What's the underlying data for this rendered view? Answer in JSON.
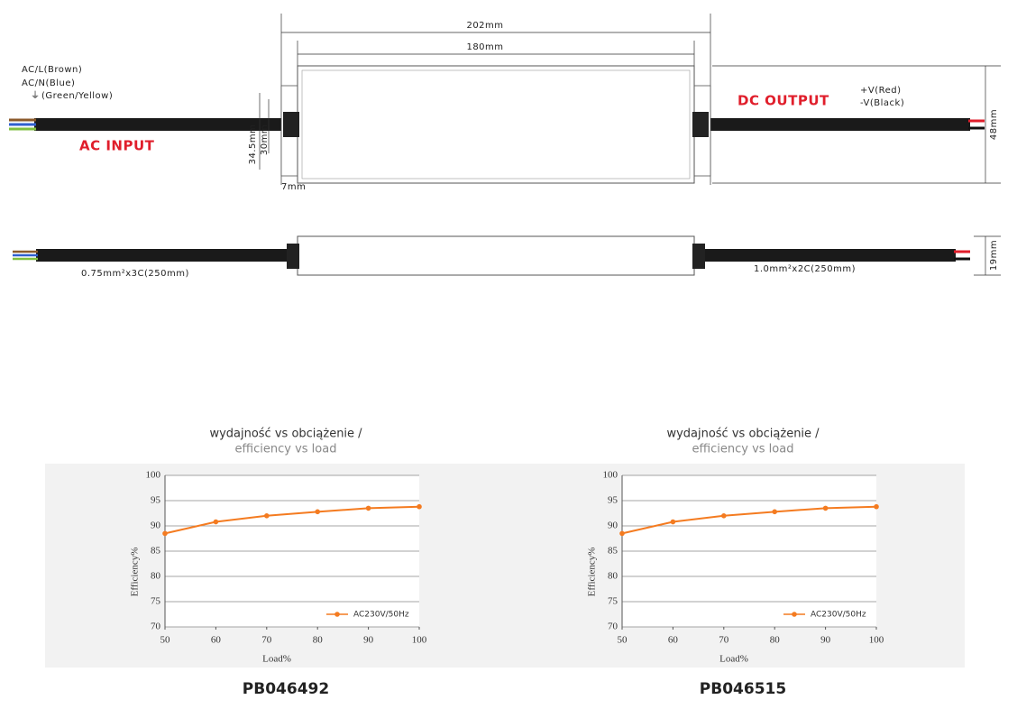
{
  "drawing": {
    "total_length": "202mm",
    "case_length": "180mm",
    "input_wires": [
      "AC/L(Brown)",
      "AC/N(Blue)",
      "(Green/Yellow)"
    ],
    "input_label": "AC INPUT",
    "output_label": "DC OUTPUT",
    "output_wires": [
      "+V(Red)",
      "-V(Black)"
    ],
    "width": "48mm",
    "mount_outer": "34.5mm",
    "mount_inner": "30mm",
    "flange": "7mm",
    "input_cable": "0.75mm²x3C(250mm)",
    "output_cable": "1.0mm²x2C(250mm)",
    "height": "19mm"
  },
  "chart_data": [
    {
      "type": "line",
      "title": "wydajność vs obciążenie /",
      "subtitle": "efficiency vs load",
      "x_label": "Load%",
      "y_label": "Efficiency%",
      "caption": "PB046492",
      "x": [
        50,
        60,
        70,
        80,
        90,
        100
      ],
      "series": [
        {
          "name": "AC230V/50Hz",
          "color": "#f47b20",
          "values": [
            88.5,
            90.8,
            92.0,
            92.8,
            93.5,
            93.8
          ]
        }
      ],
      "xlim": [
        50,
        100
      ],
      "ylim": [
        70,
        100
      ],
      "xticks": [
        50,
        60,
        70,
        80,
        90,
        100
      ],
      "yticks": [
        70,
        75,
        80,
        85,
        90,
        95,
        100
      ],
      "grid": true
    },
    {
      "type": "line",
      "title": "wydajność vs obciążenie /",
      "subtitle": "efficiency vs load",
      "x_label": "Load%",
      "y_label": "Efficiency%",
      "caption": "PB046515",
      "x": [
        50,
        60,
        70,
        80,
        90,
        100
      ],
      "series": [
        {
          "name": "AC230V/50Hz",
          "color": "#f47b20",
          "values": [
            88.5,
            90.8,
            92.0,
            92.8,
            93.5,
            93.8
          ]
        }
      ],
      "xlim": [
        50,
        100
      ],
      "ylim": [
        70,
        100
      ],
      "xticks": [
        50,
        60,
        70,
        80,
        90,
        100
      ],
      "yticks": [
        70,
        75,
        80,
        85,
        90,
        95,
        100
      ],
      "grid": true
    }
  ]
}
